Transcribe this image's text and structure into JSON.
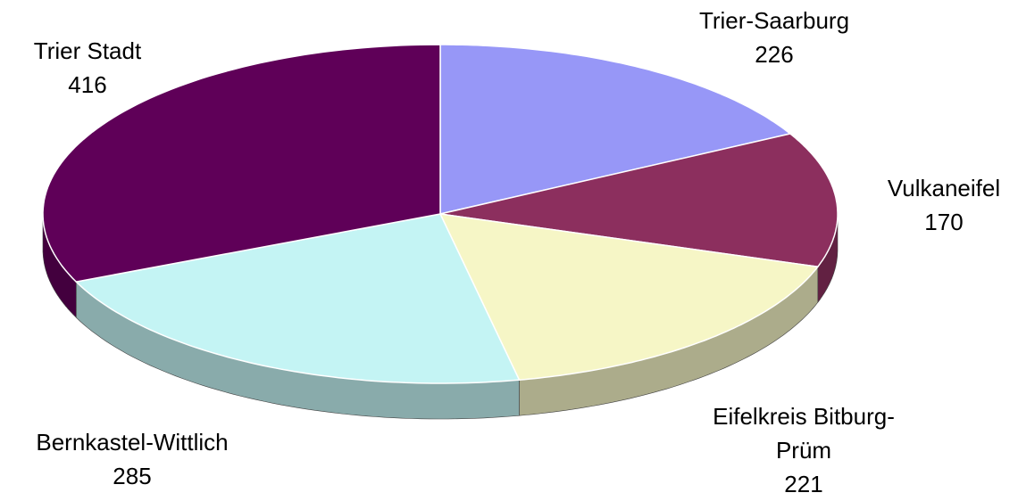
{
  "chart_data": {
    "type": "pie",
    "categories": [
      "Trier-Saarburg",
      "Vulkaneifel",
      "Eifelkreis Bitburg-Prüm",
      "Bernkastel-Wittlich",
      "Trier Stadt"
    ],
    "values": [
      226,
      170,
      221,
      285,
      416
    ],
    "colors": [
      "#9797f7",
      "#8c2f5e",
      "#f6f6c6",
      "#c4f4f4",
      "#5f0058"
    ]
  }
}
